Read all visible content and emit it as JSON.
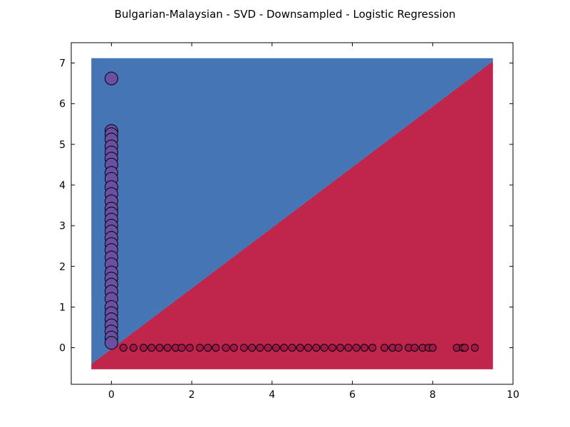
{
  "chart_data": {
    "type": "scatter",
    "title": "Bulgarian-Malaysian - SVD - Downsampled - Logistic Regression",
    "xlabel": "",
    "ylabel": "",
    "xlim": [
      -1,
      10
    ],
    "ylim": [
      -0.9,
      7.5
    ],
    "x_ticks": [
      0,
      2,
      4,
      6,
      8,
      10
    ],
    "y_ticks": [
      0,
      1,
      2,
      3,
      4,
      5,
      6,
      7
    ],
    "grid": false,
    "legend": "none",
    "decision_regions": {
      "extent_x": [
        -0.5,
        9.5
      ],
      "extent_y": [
        -0.53,
        7.12
      ],
      "boundary": [
        [
          -0.5,
          -0.4
        ],
        [
          9.5,
          7.05
        ]
      ],
      "upper_region_color": "#4575b4",
      "lower_region_color": "#c0264b"
    },
    "series": [
      {
        "color": "#6a4fa3",
        "marker_size": "large",
        "points": [
          [
            0,
            6.62
          ],
          [
            0,
            5.33
          ],
          [
            0,
            5.25
          ],
          [
            0,
            5.12
          ],
          [
            0,
            4.95
          ],
          [
            0,
            4.8
          ],
          [
            0,
            4.65
          ],
          [
            0,
            4.5
          ],
          [
            0,
            4.3
          ],
          [
            0,
            4.15
          ],
          [
            0,
            3.95
          ],
          [
            0,
            3.78
          ],
          [
            0,
            3.6
          ],
          [
            0,
            3.42
          ],
          [
            0,
            3.3
          ],
          [
            0,
            3.15
          ],
          [
            0,
            3.0
          ],
          [
            0,
            2.86
          ],
          [
            0,
            2.7
          ],
          [
            0,
            2.55
          ],
          [
            0,
            2.4
          ],
          [
            0,
            2.22
          ],
          [
            0,
            2.05
          ],
          [
            0,
            1.85
          ],
          [
            0,
            1.7
          ],
          [
            0,
            1.55
          ],
          [
            0,
            1.38
          ],
          [
            0,
            1.2
          ],
          [
            0,
            1.0
          ],
          [
            0,
            0.85
          ],
          [
            0,
            0.7
          ],
          [
            0,
            0.55
          ],
          [
            0,
            0.4
          ],
          [
            0,
            0.25
          ],
          [
            0,
            0.12
          ]
        ]
      },
      {
        "color": "#a3174a",
        "marker_size": "small",
        "points": [
          [
            0.3,
            0
          ],
          [
            0.55,
            0
          ],
          [
            0.8,
            0
          ],
          [
            1.0,
            0
          ],
          [
            1.2,
            0
          ],
          [
            1.4,
            0
          ],
          [
            1.6,
            0
          ],
          [
            1.75,
            0
          ],
          [
            1.95,
            0
          ],
          [
            2.2,
            0
          ],
          [
            2.4,
            0
          ],
          [
            2.6,
            0
          ],
          [
            2.85,
            0
          ],
          [
            3.05,
            0
          ],
          [
            3.3,
            0
          ],
          [
            3.5,
            0
          ],
          [
            3.7,
            0
          ],
          [
            3.9,
            0
          ],
          [
            4.1,
            0
          ],
          [
            4.3,
            0
          ],
          [
            4.5,
            0
          ],
          [
            4.7,
            0
          ],
          [
            4.9,
            0
          ],
          [
            5.1,
            0
          ],
          [
            5.3,
            0
          ],
          [
            5.5,
            0
          ],
          [
            5.7,
            0
          ],
          [
            5.9,
            0
          ],
          [
            6.1,
            0
          ],
          [
            6.3,
            0
          ],
          [
            6.5,
            0
          ],
          [
            6.8,
            0
          ],
          [
            7.0,
            0
          ],
          [
            7.15,
            0
          ],
          [
            7.4,
            0
          ],
          [
            7.55,
            0
          ],
          [
            7.75,
            0
          ],
          [
            7.9,
            0
          ],
          [
            8.0,
            0
          ],
          [
            8.6,
            0
          ],
          [
            8.75,
            0
          ],
          [
            8.8,
            0
          ],
          [
            9.05,
            0
          ]
        ]
      }
    ]
  }
}
